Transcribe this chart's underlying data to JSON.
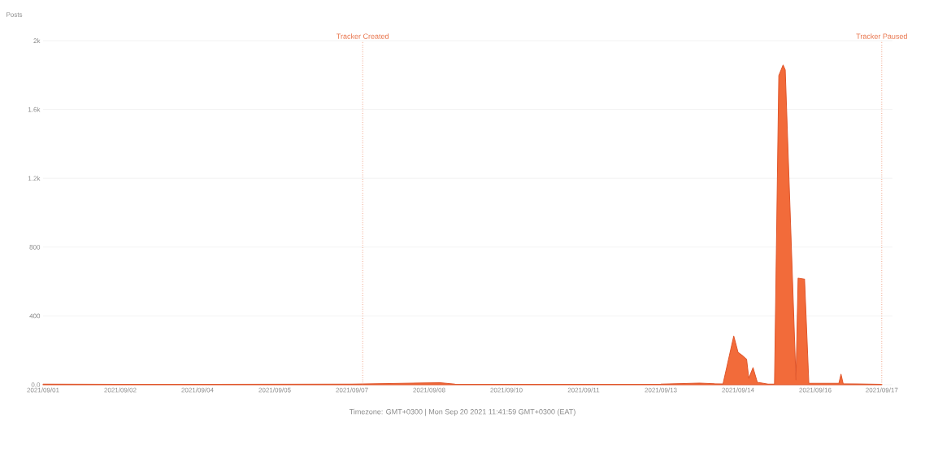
{
  "chart_data": {
    "type": "area",
    "ylabel": "Posts",
    "x": [
      "2021-09-01T00:00",
      "2021-09-02T12:00",
      "2021-09-04T00:00",
      "2021-09-05T12:00",
      "2021-09-07T00:00",
      "2021-09-08T17:00",
      "2021-09-09T00:00",
      "2021-09-11T12:00",
      "2021-09-13T00:00",
      "2021-09-13T18:00",
      "2021-09-14T01:00",
      "2021-09-14T05:00",
      "2021-09-14T10:00",
      "2021-09-14T12:00",
      "2021-09-14T14:00",
      "2021-09-14T16:00",
      "2021-09-14T17:00",
      "2021-09-14T19:00",
      "2021-09-14T21:00",
      "2021-09-15T02:00",
      "2021-09-15T05:00",
      "2021-09-15T07:00",
      "2021-09-15T09:00",
      "2021-09-15T10:00",
      "2021-09-15T15:00",
      "2021-09-15T16:00",
      "2021-09-15T19:00",
      "2021-09-15T21:00",
      "2021-09-16T03:00",
      "2021-09-16T11:00",
      "2021-09-16T12:00",
      "2021-09-16T13:00",
      "2021-09-17T07:00"
    ],
    "values": [
      3,
      2,
      2,
      3,
      4,
      12,
      3,
      2,
      3,
      10,
      6,
      5,
      283,
      189,
      170,
      147,
      38,
      99,
      14,
      3,
      4,
      1797,
      1858,
      1830,
      28,
      619,
      614,
      10,
      8,
      8,
      61,
      6,
      2
    ],
    "color": "#f26b3a",
    "xlim": [
      "2021-09-01T00:00",
      "2021-09-17T12:00"
    ],
    "xticks": [
      {
        "value": "2021-09-01T00:00",
        "label": "2021/09/01"
      },
      {
        "value": "2021-09-02T12:00",
        "label": "2021/09/02"
      },
      {
        "value": "2021-09-04T00:00",
        "label": "2021/09/04"
      },
      {
        "value": "2021-09-05T12:00",
        "label": "2021/09/05"
      },
      {
        "value": "2021-09-07T00:00",
        "label": "2021/09/07"
      },
      {
        "value": "2021-09-08T12:00",
        "label": "2021/09/08"
      },
      {
        "value": "2021-09-10T00:00",
        "label": "2021/09/10"
      },
      {
        "value": "2021-09-11T12:00",
        "label": "2021/09/11"
      },
      {
        "value": "2021-09-13T00:00",
        "label": "2021/09/13"
      },
      {
        "value": "2021-09-14T12:00",
        "label": "2021/09/14"
      },
      {
        "value": "2021-09-16T00:00",
        "label": "2021/09/16"
      },
      {
        "value": "2021-09-17T07:00",
        "label": "2021/09/17"
      }
    ],
    "ylim": [
      0,
      2000
    ],
    "yticks": [
      {
        "value": 0,
        "label": "0.0"
      },
      400,
      800,
      {
        "value": 1200,
        "label": "1.2k"
      },
      {
        "value": 1600,
        "label": "1.6k"
      },
      {
        "value": 2000,
        "label": "2k"
      }
    ],
    "grid": "y",
    "ref_lines": [
      {
        "axis": "x",
        "value": "2021-09-07T05:00",
        "label": "Tracker Created",
        "color": "#e8734a",
        "line_style": "dotted"
      },
      {
        "axis": "x",
        "value": "2021-09-17T07:00",
        "label": "Tracker Paused",
        "color": "#e8734a",
        "line_style": "dotted"
      }
    ],
    "annotations": [
      "Timezone: GMT+0300 | Mon Sep 20 2021 11:41:59 GMT+0300 (EAT)"
    ]
  }
}
